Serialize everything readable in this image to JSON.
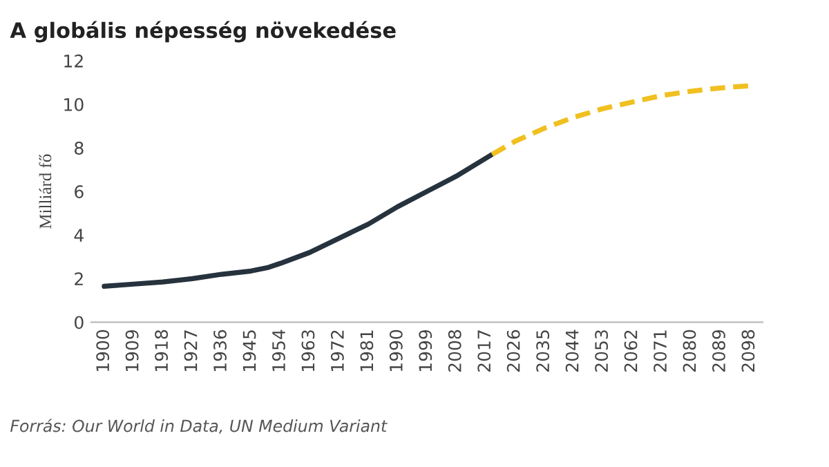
{
  "chart_data": {
    "type": "line",
    "title": "A globális népesség növekedése",
    "ylabel": "Milliárd fő",
    "annotations": [
      "Forrás: Our World in Data, UN Medium Variant"
    ],
    "series": [
      {
        "color": "#26323d",
        "line_style": "solid",
        "x": [
          1900,
          1909,
          1918,
          1927,
          1936,
          1945,
          1950,
          1954,
          1963,
          1972,
          1981,
          1990,
          1999,
          2008,
          2019
        ],
        "values": [
          1.65,
          1.75,
          1.85,
          2.0,
          2.2,
          2.35,
          2.5,
          2.7,
          3.2,
          3.85,
          4.5,
          5.3,
          6.0,
          6.7,
          7.7
        ]
      },
      {
        "color": "#f0c020",
        "line_style": "dashed",
        "x": [
          2019,
          2026,
          2035,
          2044,
          2053,
          2062,
          2071,
          2080,
          2089,
          2098
        ],
        "values": [
          7.7,
          8.3,
          8.9,
          9.4,
          9.8,
          10.1,
          10.4,
          10.6,
          10.75,
          10.85
        ]
      }
    ],
    "xlim": [
      1896,
      2102
    ],
    "xticks": [
      1900,
      1909,
      1918,
      1927,
      1936,
      1945,
      1954,
      1963,
      1972,
      1981,
      1990,
      1999,
      2008,
      2017,
      2026,
      2035,
      2044,
      2053,
      2062,
      2071,
      2080,
      2089,
      2098
    ],
    "ylim": [
      0,
      12
    ],
    "yticks": [
      0,
      2,
      4,
      6,
      8,
      10,
      12
    ],
    "grid": false,
    "legend": false
  }
}
